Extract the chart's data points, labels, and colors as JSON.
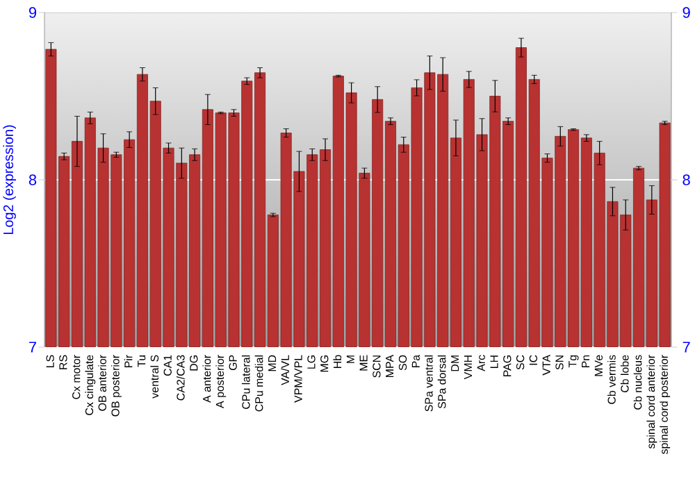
{
  "chart_data": {
    "type": "bar",
    "ylabel": "Log2 (expression)",
    "categories": [
      "LS",
      "RS",
      "Cx motor",
      "Cx cingulate",
      "OB anterior",
      "OB posterior",
      "Pir",
      "Tu",
      "ventral S",
      "CA1",
      "CA2/CA3",
      "DG",
      "A anterior",
      "A posterior",
      "GP",
      "CPu lateral",
      "CPu medial",
      "MD",
      "VA/VL",
      "VPM/VPL",
      "LG",
      "MG",
      "Hb",
      "M",
      "ME",
      "SCN",
      "MPA",
      "SO",
      "Pa",
      "SPa ventral",
      "SPa dorsal",
      "DM",
      "VMH",
      "Arc",
      "LH",
      "PAG",
      "SC",
      "IC",
      "VTA",
      "SN",
      "Tg",
      "Pn",
      "MVe",
      "Cb vermis",
      "Cb lobe",
      "Cb nucleus",
      "spinal cord anterior",
      "spinal cord posterior"
    ],
    "values": [
      8.78,
      8.14,
      8.23,
      8.37,
      8.19,
      8.15,
      8.24,
      8.63,
      8.47,
      8.19,
      8.1,
      8.15,
      8.42,
      8.4,
      8.4,
      8.59,
      8.64,
      7.79,
      8.28,
      8.05,
      8.15,
      8.18,
      8.62,
      8.52,
      8.04,
      8.48,
      8.35,
      8.21,
      8.55,
      8.64,
      8.63,
      8.25,
      8.6,
      8.27,
      8.5,
      8.35,
      8.79,
      8.6,
      8.13,
      8.26,
      8.3,
      8.25,
      8.16,
      7.87,
      7.79,
      8.07,
      7.88,
      8.34
    ],
    "errors": [
      0.04,
      0.02,
      0.15,
      0.035,
      0.085,
      0.015,
      0.047,
      0.04,
      0.08,
      0.03,
      0.09,
      0.035,
      0.09,
      0.005,
      0.02,
      0.02,
      0.03,
      0.01,
      0.025,
      0.12,
      0.035,
      0.065,
      0.005,
      0.06,
      0.03,
      0.077,
      0.02,
      0.045,
      0.048,
      0.1,
      0.1,
      0.107,
      0.048,
      0.096,
      0.094,
      0.02,
      0.056,
      0.025,
      0.025,
      0.058,
      0.005,
      0.02,
      0.07,
      0.085,
      0.09,
      0.01,
      0.085,
      0.01
    ],
    "color": "#b83232",
    "ylim": [
      7,
      9
    ],
    "yticks": [
      7,
      8,
      9
    ],
    "y2lim": [
      7,
      9
    ],
    "y2ticks": [
      7,
      8,
      9
    ],
    "grid": "y"
  }
}
